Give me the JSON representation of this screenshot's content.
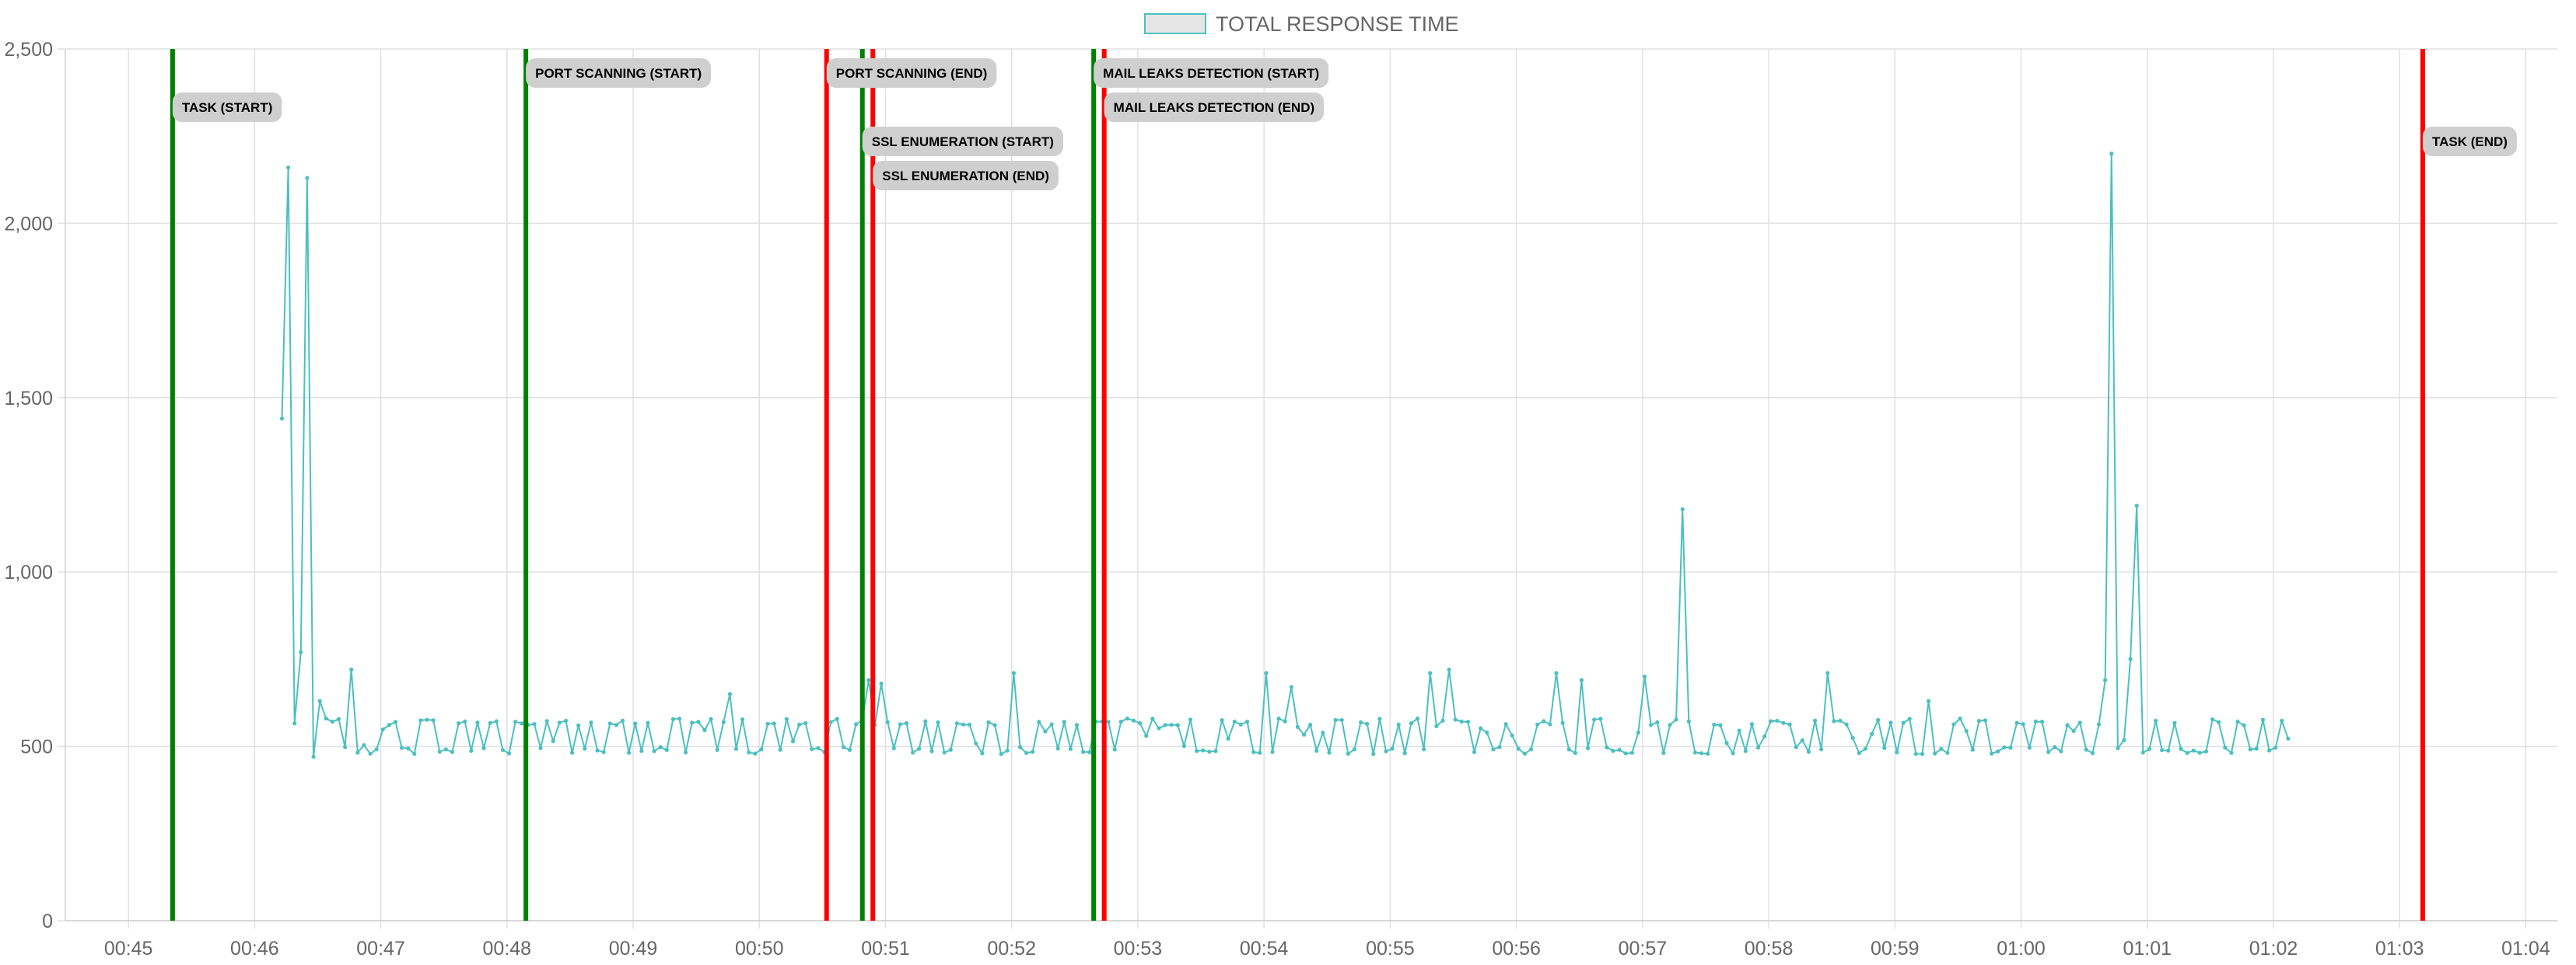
{
  "chart_data": {
    "type": "line",
    "title": "",
    "xlabel": "",
    "ylabel": "",
    "legend": {
      "position": "top-center",
      "entries": [
        "TOTAL RESPONSE TIME"
      ]
    },
    "ylim": [
      0,
      2500
    ],
    "yticks": [
      0,
      500,
      1000,
      1500,
      2000,
      2500
    ],
    "ytick_labels": [
      "0",
      "500",
      "1,000",
      "1,500",
      "2,000",
      "2,500"
    ],
    "xlim": [
      "00:44:30",
      "01:04:15"
    ],
    "xticks": [
      "00:45",
      "00:46",
      "00:47",
      "00:48",
      "00:49",
      "00:50",
      "00:51",
      "00:52",
      "00:53",
      "00:54",
      "00:55",
      "00:56",
      "00:57",
      "00:58",
      "00:59",
      "01:00",
      "01:01",
      "01:02",
      "01:03",
      "01:04"
    ],
    "grid": true,
    "series": [
      {
        "name": "TOTAL RESPONSE TIME",
        "color": "#4bc0c0",
        "x_start": "00:46:13",
        "x_end": "01:02:07",
        "baseline_range": [
          470,
          590
        ],
        "peaks": [
          {
            "x": "00:46:13",
            "y": 1440
          },
          {
            "x": "00:46:17",
            "y": 2160
          },
          {
            "x": "00:46:21",
            "y": 770
          },
          {
            "x": "00:46:25",
            "y": 2130
          },
          {
            "x": "00:46:27",
            "y": 470
          },
          {
            "x": "00:46:31",
            "y": 630
          },
          {
            "x": "00:46:47",
            "y": 720
          },
          {
            "x": "00:49:45",
            "y": 650
          },
          {
            "x": "00:50:51",
            "y": 690
          },
          {
            "x": "00:50:57",
            "y": 680
          },
          {
            "x": "00:52:00",
            "y": 710
          },
          {
            "x": "00:54:02",
            "y": 710
          },
          {
            "x": "00:54:13",
            "y": 670
          },
          {
            "x": "00:55:18",
            "y": 710
          },
          {
            "x": "00:55:27",
            "y": 720
          },
          {
            "x": "00:56:18",
            "y": 710
          },
          {
            "x": "00:56:30",
            "y": 690
          },
          {
            "x": "00:57:00",
            "y": 700
          },
          {
            "x": "00:57:18",
            "y": 1180
          },
          {
            "x": "00:58:27",
            "y": 710
          },
          {
            "x": "00:59:15",
            "y": 630
          },
          {
            "x": "01:00:39",
            "y": 690
          },
          {
            "x": "01:00:42",
            "y": 2200
          },
          {
            "x": "01:00:51",
            "y": 750
          },
          {
            "x": "01:00:54",
            "y": 1190
          }
        ]
      }
    ],
    "annotations": [
      {
        "label": "TASK (START)",
        "x": "00:45:21",
        "color": "#008000"
      },
      {
        "label": "PORT SCANNING (START)",
        "x": "00:48:09",
        "color": "#008000"
      },
      {
        "label": "PORT SCANNING (END)",
        "x": "00:50:32",
        "color": "#ff0000"
      },
      {
        "label": "SSL ENUMERATION (START)",
        "x": "00:50:49",
        "color": "#008000"
      },
      {
        "label": "SSL ENUMERATION (END)",
        "x": "00:50:54",
        "color": "#ff0000"
      },
      {
        "label": "MAIL LEAKS DETECTION (START)",
        "x": "00:52:39",
        "color": "#008000"
      },
      {
        "label": "MAIL LEAKS DETECTION (END)",
        "x": "00:52:44",
        "color": "#ff0000"
      },
      {
        "label": "TASK (END)",
        "x": "01:03:11",
        "color": "#ff0000"
      }
    ]
  }
}
